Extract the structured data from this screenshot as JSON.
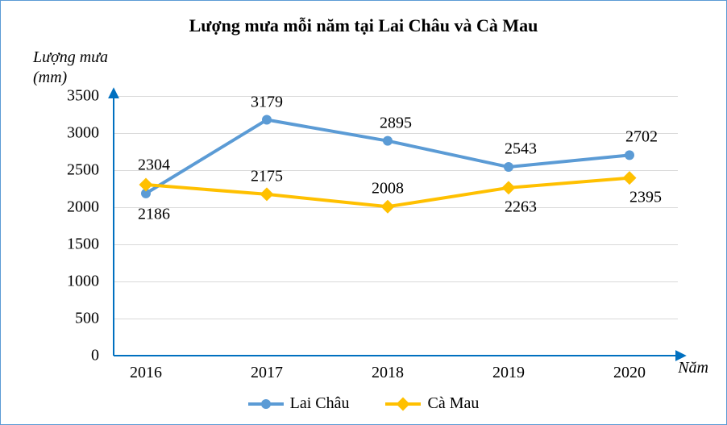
{
  "chart": {
    "type": "line",
    "title": "Lượng mưa mỗi năm tại Lai Châu và Cà Mau",
    "ylabel_line1": "Lượng mưa",
    "ylabel_line2": "(mm)",
    "xlabel": "Năm",
    "title_fontsize": 22,
    "label_fontsize": 20,
    "tick_fontsize": 20,
    "background_color": "#ffffff",
    "border_color": "#5b9bd5",
    "grid_color": "#d9d9d9",
    "axis_arrow_color": "#0070c0",
    "ylim": [
      0,
      3500
    ],
    "ytick_step": 500,
    "yticks": [
      0,
      500,
      1000,
      1500,
      2000,
      2500,
      3000,
      3500
    ],
    "categories": [
      "2016",
      "2017",
      "2018",
      "2019",
      "2020"
    ],
    "series": [
      {
        "name": "Lai Châu",
        "color": "#5b9bd5",
        "marker": "circle",
        "marker_size": 12,
        "line_width": 4,
        "values": [
          2186,
          3179,
          2895,
          2543,
          2702
        ],
        "label_offsets": [
          {
            "dx": 10,
            "dy": 26
          },
          {
            "dx": 0,
            "dy": -22
          },
          {
            "dx": 10,
            "dy": -22
          },
          {
            "dx": 15,
            "dy": -22
          },
          {
            "dx": 15,
            "dy": -22
          }
        ]
      },
      {
        "name": "Cà Mau",
        "color": "#ffc000",
        "marker": "diamond",
        "marker_size": 12,
        "line_width": 4,
        "values": [
          2304,
          2175,
          2008,
          2263,
          2395
        ],
        "label_offsets": [
          {
            "dx": 10,
            "dy": -24
          },
          {
            "dx": 0,
            "dy": -22
          },
          {
            "dx": 0,
            "dy": -22
          },
          {
            "dx": 15,
            "dy": 24
          },
          {
            "dx": 20,
            "dy": 24
          }
        ]
      }
    ]
  }
}
